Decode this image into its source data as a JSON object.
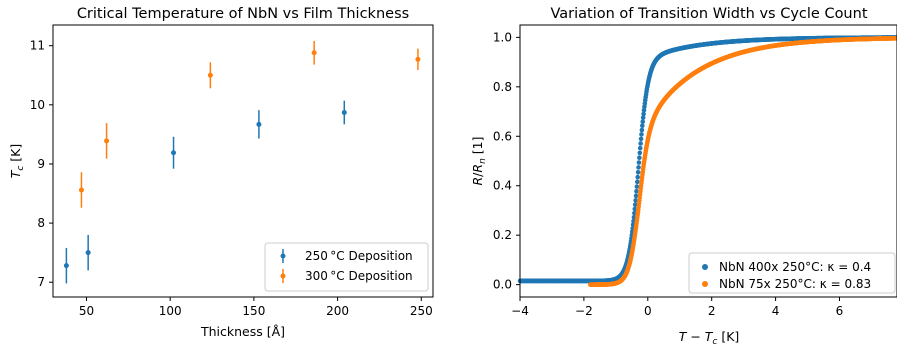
{
  "chart_data": [
    {
      "type": "scatter",
      "title": "Critical Temperature of NbN vs Film Thickness",
      "xlabel": "Thickness [Å]",
      "ylabel": "T_c [K]",
      "xlim": [
        30,
        257
      ],
      "ylim": [
        6.75,
        11.35
      ],
      "xticks": [
        "50",
        "100",
        "150",
        "200",
        "250"
      ],
      "yticks": [
        "7",
        "8",
        "9",
        "10",
        "11"
      ],
      "legend_position": "lower right",
      "series": [
        {
          "name": "250 °C Deposition",
          "color": "#1f77b4",
          "points": [
            {
              "x": 38,
              "y": 7.28,
              "err": 0.3
            },
            {
              "x": 51,
              "y": 7.5,
              "err": 0.3
            },
            {
              "x": 102,
              "y": 9.19,
              "err": 0.27
            },
            {
              "x": 153,
              "y": 9.67,
              "err": 0.24
            },
            {
              "x": 204,
              "y": 9.87,
              "err": 0.2
            }
          ]
        },
        {
          "name": "300 °C Deposition",
          "color": "#ff7f0e",
          "points": [
            {
              "x": 47,
              "y": 8.56,
              "err": 0.3
            },
            {
              "x": 62,
              "y": 9.39,
              "err": 0.3
            },
            {
              "x": 124,
              "y": 10.5,
              "err": 0.22
            },
            {
              "x": 186,
              "y": 10.88,
              "err": 0.2
            },
            {
              "x": 248,
              "y": 10.77,
              "err": 0.18
            }
          ]
        }
      ]
    },
    {
      "type": "scatter",
      "title": "Variation of Transition Width vs Cycle Count",
      "xlabel": "T − T_c [K]",
      "ylabel": "R/R_n [1]",
      "xlim": [
        -4,
        7.8
      ],
      "ylim": [
        -0.05,
        1.05
      ],
      "xticks": [
        "−4",
        "−2",
        "0",
        "2",
        "4",
        "6"
      ],
      "yticks": [
        "0.0",
        "0.2",
        "0.4",
        "0.6",
        "0.8",
        "1.0"
      ],
      "legend_position": "lower right",
      "series": [
        {
          "name": "NbN 400x 250°C: κ = 0.4",
          "color": "#1f77b4",
          "x_range": [
            -4,
            7.8
          ],
          "low_level": 0.015,
          "transition_center": -0.3,
          "transition_width": 0.15,
          "saturation": 0.9,
          "tail_rate": 0.6
        },
        {
          "name": "NbN 75x 250°C: κ = 0.83",
          "color": "#ff7f0e",
          "x_range": [
            -1.8,
            7.8
          ],
          "low_level": 0.0,
          "transition_center": -0.3,
          "transition_width": 0.15,
          "saturation": 0.6,
          "tail_rate": 0.58
        }
      ]
    }
  ]
}
